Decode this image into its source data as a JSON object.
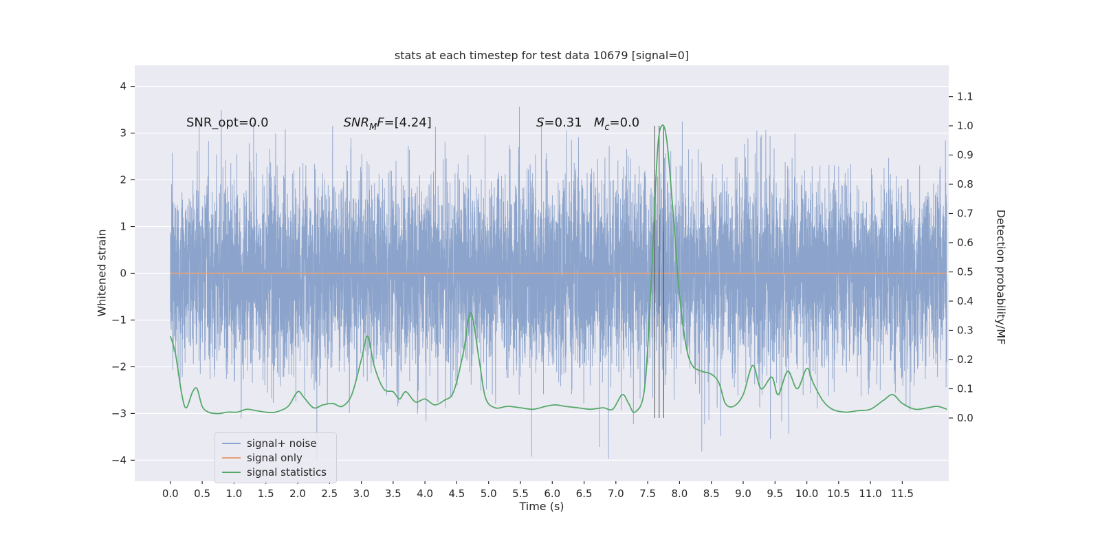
{
  "chart_data": {
    "type": "line",
    "title": "stats at each timestep for test data 10679 [signal=0]",
    "xlabel": "Time (s)",
    "ylabel_left": "Whitened strain",
    "ylabel_right": "Detection probability/MF",
    "plot_bg": "#eaeaf2",
    "grid": {
      "axis": "y",
      "color": "#ffffff"
    },
    "x_range": [
      -0.56,
      12.23
    ],
    "y_left_range": [
      -4.45,
      4.45
    ],
    "y_right_range": [
      -0.2165,
      1.2072
    ],
    "xticks": [
      0,
      0.5,
      1,
      1.5,
      2,
      2.5,
      3,
      3.5,
      4,
      4.5,
      5,
      5.5,
      6,
      6.5,
      7,
      7.5,
      8,
      8.5,
      9,
      9.5,
      10,
      10.5,
      11,
      11.5
    ],
    "yticks_left": [
      -4,
      -3,
      -2,
      -1,
      0,
      1,
      2,
      3,
      4
    ],
    "yticks_right": [
      0,
      0.1,
      0.2,
      0.3,
      0.4,
      0.5,
      0.6,
      0.7,
      0.8,
      0.9,
      1.0,
      1.1
    ],
    "annotations": [
      {
        "t": 0.25,
        "v": 3.23,
        "parts": [
          {
            "text": "SNR_opt=0.0"
          }
        ]
      },
      {
        "t": 2.72,
        "v": 3.23,
        "parts": [
          {
            "text": "SNR",
            "italic": true
          },
          {
            "text": "M",
            "italic": true,
            "sub": true
          },
          {
            "text": "F",
            "italic": true
          },
          {
            "text": "=[4.24]"
          }
        ]
      },
      {
        "t": 5.75,
        "v": 3.23,
        "parts": [
          {
            "text": "S",
            "italic": true
          },
          {
            "text": "=0.31   "
          },
          {
            "text": "M",
            "italic": true
          },
          {
            "text": "c",
            "italic": true,
            "sub": true
          },
          {
            "text": "=0.0"
          }
        ]
      }
    ],
    "event_lines": {
      "times": [
        7.61,
        7.68,
        7.75
      ],
      "color": "#4d4d4d",
      "axis": "right",
      "span": [
        0.0,
        1.0
      ]
    },
    "series": [
      {
        "name": "signal+ noise",
        "color": "#8ca4cb",
        "axis": "left",
        "kind": "gaussian-noise",
        "seed": 10679,
        "n_points": 8192,
        "t_start": 0,
        "t_end": 12.2,
        "mean": 0,
        "std": 1.03
      },
      {
        "name": "signal only",
        "color": "#e9a178",
        "axis": "left",
        "kind": "constant",
        "value": 0.0,
        "t_start": 0,
        "t_end": 12.2
      },
      {
        "name": "signal statistics",
        "color": "#55a868",
        "axis": "right",
        "kind": "smooth-curve",
        "points": [
          [
            0.0,
            0.28
          ],
          [
            0.08,
            0.22
          ],
          [
            0.18,
            0.08
          ],
          [
            0.25,
            0.035
          ],
          [
            0.35,
            0.09
          ],
          [
            0.42,
            0.1
          ],
          [
            0.5,
            0.04
          ],
          [
            0.6,
            0.02
          ],
          [
            0.75,
            0.015
          ],
          [
            0.9,
            0.02
          ],
          [
            1.05,
            0.02
          ],
          [
            1.2,
            0.03
          ],
          [
            1.35,
            0.025
          ],
          [
            1.5,
            0.02
          ],
          [
            1.65,
            0.02
          ],
          [
            1.85,
            0.04
          ],
          [
            2.0,
            0.09
          ],
          [
            2.1,
            0.07
          ],
          [
            2.25,
            0.035
          ],
          [
            2.4,
            0.045
          ],
          [
            2.55,
            0.05
          ],
          [
            2.7,
            0.04
          ],
          [
            2.85,
            0.08
          ],
          [
            3.0,
            0.2
          ],
          [
            3.1,
            0.28
          ],
          [
            3.2,
            0.18
          ],
          [
            3.35,
            0.1
          ],
          [
            3.5,
            0.09
          ],
          [
            3.6,
            0.065
          ],
          [
            3.7,
            0.09
          ],
          [
            3.85,
            0.055
          ],
          [
            4.0,
            0.065
          ],
          [
            4.15,
            0.045
          ],
          [
            4.3,
            0.06
          ],
          [
            4.45,
            0.09
          ],
          [
            4.6,
            0.22
          ],
          [
            4.72,
            0.36
          ],
          [
            4.85,
            0.2
          ],
          [
            4.95,
            0.07
          ],
          [
            5.1,
            0.035
          ],
          [
            5.3,
            0.04
          ],
          [
            5.5,
            0.035
          ],
          [
            5.7,
            0.03
          ],
          [
            5.9,
            0.04
          ],
          [
            6.05,
            0.045
          ],
          [
            6.2,
            0.04
          ],
          [
            6.4,
            0.035
          ],
          [
            6.6,
            0.03
          ],
          [
            6.8,
            0.035
          ],
          [
            6.95,
            0.03
          ],
          [
            7.1,
            0.08
          ],
          [
            7.2,
            0.05
          ],
          [
            7.3,
            0.02
          ],
          [
            7.45,
            0.1
          ],
          [
            7.55,
            0.45
          ],
          [
            7.65,
            0.9
          ],
          [
            7.72,
            1.0
          ],
          [
            7.8,
            0.95
          ],
          [
            7.9,
            0.7
          ],
          [
            8.0,
            0.42
          ],
          [
            8.1,
            0.25
          ],
          [
            8.2,
            0.18
          ],
          [
            8.35,
            0.16
          ],
          [
            8.5,
            0.15
          ],
          [
            8.62,
            0.12
          ],
          [
            8.72,
            0.05
          ],
          [
            8.85,
            0.04
          ],
          [
            9.0,
            0.08
          ],
          [
            9.15,
            0.18
          ],
          [
            9.28,
            0.1
          ],
          [
            9.45,
            0.14
          ],
          [
            9.55,
            0.08
          ],
          [
            9.7,
            0.16
          ],
          [
            9.85,
            0.1
          ],
          [
            10.0,
            0.17
          ],
          [
            10.1,
            0.12
          ],
          [
            10.25,
            0.06
          ],
          [
            10.4,
            0.03
          ],
          [
            10.6,
            0.02
          ],
          [
            10.8,
            0.025
          ],
          [
            11.0,
            0.03
          ],
          [
            11.2,
            0.06
          ],
          [
            11.35,
            0.08
          ],
          [
            11.5,
            0.05
          ],
          [
            11.7,
            0.03
          ],
          [
            11.9,
            0.035
          ],
          [
            12.05,
            0.04
          ],
          [
            12.2,
            0.03
          ]
        ]
      }
    ]
  }
}
